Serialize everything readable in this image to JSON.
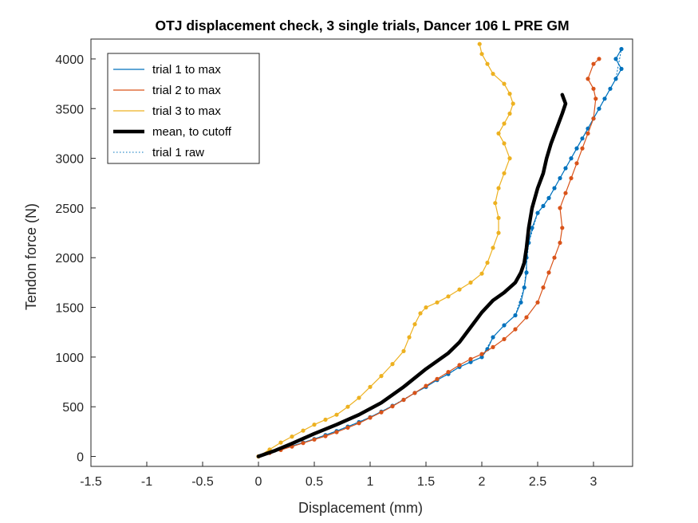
{
  "chart_data": {
    "type": "line",
    "title": "OTJ displacement check, 3 single trials, Dancer 106 L PRE GM",
    "xlabel": "Displacement (mm)",
    "ylabel": "Tendon force (N)",
    "xlim": [
      -1.5,
      3.35
    ],
    "ylim": [
      -100,
      4200
    ],
    "xticks": [
      -1.5,
      -1,
      -0.5,
      0,
      0.5,
      1,
      1.5,
      2,
      2.5,
      3
    ],
    "xtick_labels": [
      "-1.5",
      "-1",
      "-0.5",
      "0",
      "0.5",
      "1",
      "1.5",
      "2",
      "2.5",
      "3"
    ],
    "yticks": [
      0,
      500,
      1000,
      1500,
      2000,
      2500,
      3000,
      3500,
      4000
    ],
    "ytick_labels": [
      "0",
      "500",
      "1000",
      "1500",
      "2000",
      "2500",
      "3000",
      "3500",
      "4000"
    ],
    "grid": false,
    "legend": "top-left",
    "series": [
      {
        "name": "trial 1 to max",
        "color": "#0072BD",
        "style": "solid-markers",
        "x": [
          0,
          0.1,
          0.2,
          0.3,
          0.4,
          0.5,
          0.6,
          0.7,
          0.8,
          0.9,
          1.0,
          1.1,
          1.2,
          1.3,
          1.4,
          1.5,
          1.6,
          1.7,
          1.8,
          1.9,
          2.0,
          2.05,
          2.1,
          2.2,
          2.3,
          2.35,
          2.38,
          2.4,
          2.4,
          2.42,
          2.45,
          2.5,
          2.55,
          2.6,
          2.65,
          2.7,
          2.75,
          2.8,
          2.85,
          2.9,
          2.95,
          3.0,
          3.05,
          3.1,
          3.15,
          3.2,
          3.25,
          3.2,
          3.25
        ],
        "y": [
          0,
          40,
          70,
          105,
          140,
          175,
          215,
          255,
          300,
          345,
          395,
          450,
          510,
          570,
          640,
          700,
          770,
          830,
          900,
          950,
          1000,
          1080,
          1200,
          1320,
          1420,
          1550,
          1700,
          1850,
          2000,
          2150,
          2300,
          2450,
          2520,
          2600,
          2700,
          2800,
          2900,
          3000,
          3100,
          3200,
          3300,
          3400,
          3500,
          3600,
          3700,
          3800,
          3900,
          4000,
          4100
        ]
      },
      {
        "name": "trial 2 to max",
        "color": "#D95319",
        "style": "solid-markers",
        "x": [
          0,
          0.1,
          0.2,
          0.3,
          0.4,
          0.5,
          0.6,
          0.7,
          0.8,
          0.9,
          1.0,
          1.1,
          1.2,
          1.3,
          1.4,
          1.5,
          1.6,
          1.7,
          1.8,
          1.9,
          2.0,
          2.1,
          2.2,
          2.3,
          2.4,
          2.5,
          2.55,
          2.6,
          2.65,
          2.7,
          2.72,
          2.7,
          2.75,
          2.8,
          2.85,
          2.9,
          2.95,
          3.0,
          3.02,
          3.0,
          2.95,
          3.0,
          3.05
        ],
        "y": [
          0,
          35,
          65,
          100,
          135,
          170,
          205,
          245,
          290,
          335,
          390,
          445,
          505,
          570,
          640,
          710,
          780,
          850,
          920,
          980,
          1030,
          1100,
          1180,
          1280,
          1400,
          1550,
          1700,
          1850,
          2000,
          2150,
          2300,
          2500,
          2650,
          2800,
          2950,
          3100,
          3250,
          3400,
          3600,
          3700,
          3800,
          3950,
          4000
        ]
      },
      {
        "name": "trial 3 to max",
        "color": "#EDB120",
        "style": "solid-markers",
        "x": [
          0,
          0.1,
          0.2,
          0.3,
          0.4,
          0.5,
          0.6,
          0.7,
          0.8,
          0.9,
          1.0,
          1.1,
          1.2,
          1.3,
          1.35,
          1.4,
          1.45,
          1.5,
          1.6,
          1.7,
          1.8,
          1.9,
          2.0,
          2.05,
          2.1,
          2.15,
          2.15,
          2.12,
          2.15,
          2.2,
          2.25,
          2.2,
          2.15,
          2.2,
          2.25,
          2.28,
          2.25,
          2.2,
          2.1,
          2.05,
          2.0,
          1.98
        ],
        "y": [
          0,
          70,
          140,
          200,
          260,
          320,
          370,
          420,
          500,
          590,
          700,
          810,
          930,
          1060,
          1200,
          1330,
          1440,
          1500,
          1550,
          1610,
          1680,
          1750,
          1840,
          1950,
          2100,
          2250,
          2400,
          2550,
          2700,
          2850,
          3000,
          3150,
          3250,
          3350,
          3450,
          3550,
          3650,
          3750,
          3850,
          3950,
          4050,
          4150
        ]
      },
      {
        "name": "mean, to cutoff",
        "color": "#000000",
        "style": "thick",
        "x": [
          0,
          0.15,
          0.3,
          0.5,
          0.7,
          0.9,
          1.1,
          1.3,
          1.5,
          1.7,
          1.8,
          1.9,
          2.0,
          2.1,
          2.2,
          2.3,
          2.35,
          2.38,
          2.4,
          2.42,
          2.45,
          2.5,
          2.55,
          2.58,
          2.62,
          2.67,
          2.72,
          2.75,
          2.72
        ],
        "y": [
          0,
          60,
          130,
          230,
          320,
          420,
          540,
          700,
          880,
          1040,
          1150,
          1300,
          1450,
          1570,
          1650,
          1750,
          1850,
          1950,
          2100,
          2300,
          2500,
          2700,
          2850,
          3000,
          3150,
          3300,
          3450,
          3550,
          3640
        ]
      },
      {
        "name": "trial 1 raw",
        "color": "#0072BD",
        "style": "dotted",
        "x": [
          0,
          0.2,
          0.4,
          0.6,
          0.8,
          1.0,
          1.2,
          1.4,
          1.6,
          1.8,
          2.0,
          2.1,
          2.2,
          2.3,
          2.38,
          2.42,
          2.5,
          2.6,
          2.7,
          2.8,
          2.9,
          3.0,
          3.1,
          3.2,
          3.25
        ],
        "y": [
          0,
          70,
          140,
          215,
          300,
          395,
          510,
          640,
          770,
          900,
          1000,
          1200,
          1320,
          1420,
          1700,
          2150,
          2450,
          2600,
          2800,
          3000,
          3200,
          3400,
          3600,
          3800,
          4100
        ]
      }
    ]
  }
}
